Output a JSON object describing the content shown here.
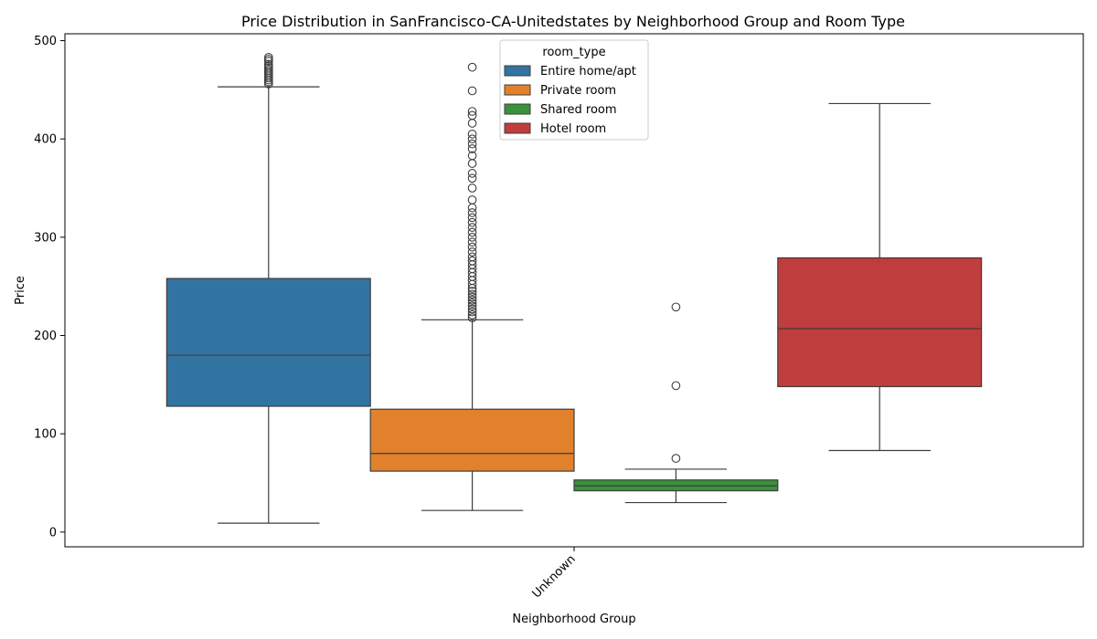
{
  "chart_data": {
    "type": "box",
    "title": "Price Distribution in SanFrancisco-CA-Unitedstates by Neighborhood Group and Room Type",
    "xlabel": "Neighborhood Group",
    "ylabel": "Price",
    "categories": [
      "Unknown"
    ],
    "ylim": [
      -15,
      507
    ],
    "yticks": [
      0,
      100,
      200,
      300,
      400,
      500
    ],
    "grid": false,
    "legend": {
      "title": "room_type",
      "placement": "upper-center"
    },
    "series": [
      {
        "name": "Entire home/apt",
        "color": "#3274a1",
        "whisker_low": 9,
        "q1": 128,
        "median": 180,
        "q3": 258,
        "whisker_high": 453,
        "outliers": [
          456,
          458,
          460,
          462,
          464,
          466,
          468,
          470,
          472,
          474,
          476,
          479,
          481,
          483
        ]
      },
      {
        "name": "Private room",
        "color": "#e1812c",
        "whisker_low": 22,
        "q1": 62,
        "median": 80,
        "q3": 125,
        "whisker_high": 216,
        "outliers": [
          218,
          221,
          224,
          227,
          230,
          233,
          236,
          239,
          242,
          245,
          248,
          252,
          256,
          260,
          264,
          268,
          272,
          276,
          280,
          285,
          290,
          295,
          300,
          305,
          310,
          315,
          320,
          325,
          330,
          338,
          350,
          360,
          365,
          375,
          383,
          390,
          395,
          400,
          405,
          416,
          424,
          428,
          449,
          473
        ]
      },
      {
        "name": "Shared room",
        "color": "#3a923a",
        "whisker_low": 30,
        "q1": 42,
        "median": 47,
        "q3": 53,
        "whisker_high": 64,
        "outliers": [
          75,
          149,
          229
        ]
      },
      {
        "name": "Hotel room",
        "color": "#c03d3e",
        "whisker_low": 83,
        "q1": 148,
        "median": 207,
        "q3": 279,
        "whisker_high": 436,
        "outliers": []
      }
    ]
  }
}
